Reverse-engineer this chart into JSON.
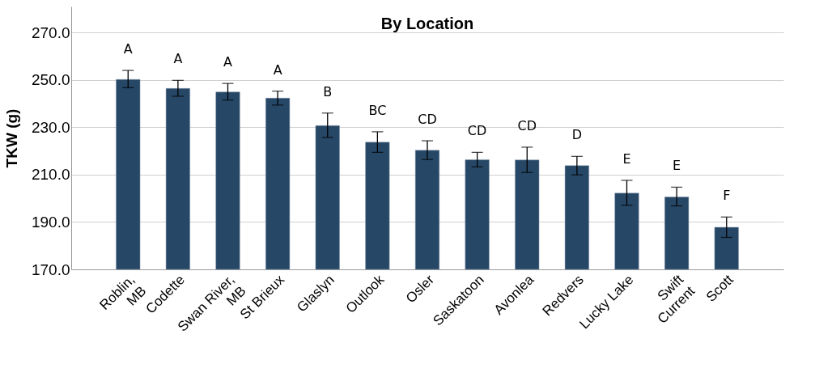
{
  "chart_data": {
    "type": "bar",
    "title": "By Location",
    "ylabel": "TKW (g)",
    "categories": [
      "Roblin, MB",
      "Codette",
      "Swan River, MB",
      "St Brieux",
      "Glaslyn",
      "Outlook",
      "Osler",
      "Saskatoon",
      "Avonlea",
      "Redvers",
      "Lucky Lake",
      "Swift Current",
      "Scott"
    ],
    "values": [
      250.2,
      246.4,
      244.9,
      242.3,
      230.7,
      223.7,
      220.3,
      216.3,
      216.2,
      213.8,
      202.2,
      200.6,
      187.8
    ],
    "errors": [
      [
        246.7,
        254.0
      ],
      [
        243.1,
        249.8
      ],
      [
        241.5,
        248.5
      ],
      [
        239.4,
        245.3
      ],
      [
        225.7,
        236.0
      ],
      [
        219.4,
        228.1
      ],
      [
        216.4,
        224.3
      ],
      [
        213.3,
        219.4
      ],
      [
        210.9,
        221.6
      ],
      [
        209.9,
        217.7
      ],
      [
        197.1,
        207.6
      ],
      [
        196.8,
        204.7
      ],
      [
        183.5,
        192.1
      ]
    ],
    "color": "#264766",
    "ylim": [
      170,
      281
    ],
    "yticks": [
      {
        "value": 170,
        "label": "170.0"
      },
      {
        "value": 190,
        "label": "190.0"
      },
      {
        "value": 210,
        "label": "210.0"
      },
      {
        "value": 230,
        "label": "230.0"
      },
      {
        "value": 250,
        "label": "250.0"
      },
      {
        "value": 270,
        "label": "270.0"
      }
    ],
    "grid": "y",
    "annotations": [
      "A",
      "A",
      "A",
      "A",
      "B",
      "BC",
      "CD",
      "CD",
      "CD",
      "D",
      "E",
      "E",
      "F"
    ]
  }
}
